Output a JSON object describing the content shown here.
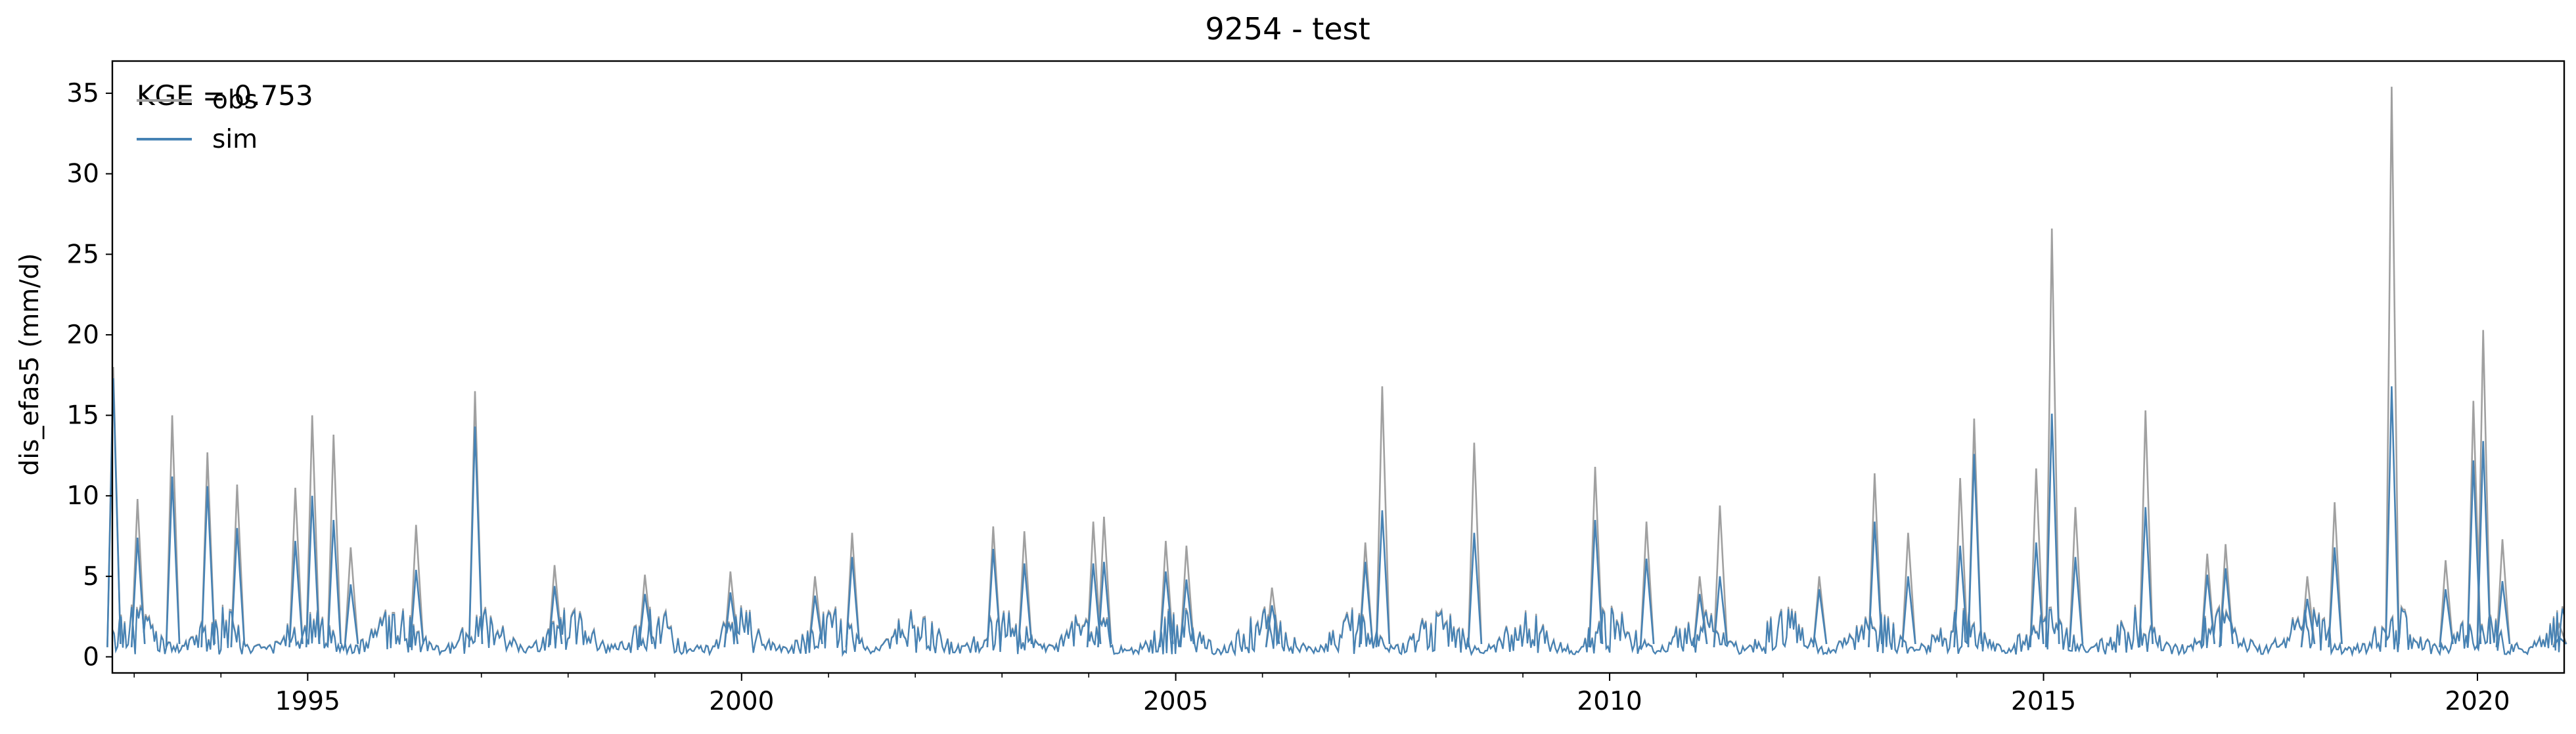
{
  "chart_data": {
    "type": "line",
    "title": "9254 - test",
    "xlabel": "",
    "ylabel": "dis_efas5 (mm/d)",
    "xlim": [
      "1992-10-01",
      "2020-12-31"
    ],
    "ylim": [
      -1,
      37
    ],
    "x_ticks": [
      "1995",
      "2000",
      "2005",
      "2010",
      "2015",
      "2020"
    ],
    "y_ticks": [
      "0",
      "5",
      "10",
      "15",
      "20",
      "25",
      "30",
      "35"
    ],
    "grid": false,
    "legend_position": "top-left",
    "annotation": "KGE = 0.753",
    "series": [
      {
        "name": "obs",
        "color": "#a0a0a0",
        "x": [
          "1992-10-05",
          "1993-01-15",
          "1993-06-10",
          "1993-11-05",
          "1994-03-10",
          "1994-11-10",
          "1995-01-20",
          "1995-04-20",
          "1995-07-01",
          "1996-04-01",
          "1996-12-05",
          "1997-11-05",
          "1998-11-20",
          "1999-11-15",
          "2000-11-05",
          "2001-04-10",
          "2002-11-25",
          "2003-04-05",
          "2004-01-20",
          "2004-03-05",
          "2004-11-20",
          "2005-02-15",
          "2006-02-10",
          "2007-03-10",
          "2007-05-20",
          "2008-06-10",
          "2009-11-01",
          "2010-06-05",
          "2011-01-15",
          "2011-04-10",
          "2012-06-01",
          "2013-01-20",
          "2013-06-10",
          "2014-01-15",
          "2014-03-15",
          "2014-12-01",
          "2015-02-05",
          "2015-05-15",
          "2016-03-05",
          "2016-11-20",
          "2017-02-05",
          "2018-01-15",
          "2018-05-10",
          "2019-01-05",
          "2019-08-20",
          "2019-12-15",
          "2020-01-25",
          "2020-04-15",
          "2020-12-10"
        ],
        "values": [
          18.0,
          9.8,
          15.0,
          12.7,
          10.7,
          10.5,
          15.0,
          13.8,
          6.8,
          8.2,
          16.5,
          5.7,
          5.1,
          5.3,
          5.0,
          7.7,
          8.1,
          7.8,
          8.4,
          8.7,
          7.2,
          6.9,
          4.3,
          7.1,
          16.8,
          13.3,
          11.8,
          8.4,
          5.0,
          9.4,
          5.0,
          11.4,
          7.7,
          11.1,
          14.8,
          11.7,
          26.6,
          9.3,
          15.3,
          6.4,
          7.0,
          5.0,
          9.6,
          35.4,
          6.0,
          15.9,
          20.3,
          7.3,
          2.0
        ]
      },
      {
        "name": "sim",
        "color": "#4682b4",
        "x": [
          "1992-10-05",
          "1993-01-15",
          "1993-06-10",
          "1993-11-05",
          "1994-03-10",
          "1994-11-10",
          "1995-01-20",
          "1995-04-20",
          "1995-07-01",
          "1996-04-01",
          "1996-12-05",
          "1997-11-05",
          "1998-11-20",
          "1999-11-15",
          "2000-11-05",
          "2001-04-10",
          "2002-11-25",
          "2003-04-05",
          "2004-01-20",
          "2004-03-05",
          "2004-11-20",
          "2005-02-15",
          "2006-02-10",
          "2007-03-10",
          "2007-05-20",
          "2008-06-10",
          "2009-11-01",
          "2010-06-05",
          "2011-01-15",
          "2011-04-10",
          "2012-06-01",
          "2013-01-20",
          "2013-06-10",
          "2014-01-15",
          "2014-03-15",
          "2014-12-01",
          "2015-02-05",
          "2015-05-15",
          "2016-03-05",
          "2016-11-20",
          "2017-02-05",
          "2018-01-15",
          "2018-05-10",
          "2019-01-05",
          "2019-08-20",
          "2019-12-15",
          "2020-01-25",
          "2020-04-15",
          "2020-12-10"
        ],
        "values": [
          17.3,
          7.4,
          11.2,
          10.6,
          8.0,
          7.2,
          10.0,
          8.5,
          4.5,
          5.4,
          14.3,
          4.4,
          3.9,
          4.0,
          3.8,
          6.2,
          6.7,
          5.8,
          5.8,
          5.9,
          5.3,
          4.8,
          3.2,
          5.9,
          9.1,
          7.7,
          8.5,
          6.1,
          3.9,
          5.0,
          4.2,
          8.4,
          5.0,
          6.9,
          12.6,
          7.1,
          15.1,
          6.2,
          9.3,
          5.1,
          5.5,
          3.6,
          6.8,
          16.8,
          4.2,
          12.2,
          13.4,
          4.7,
          1.2
        ]
      }
    ]
  }
}
